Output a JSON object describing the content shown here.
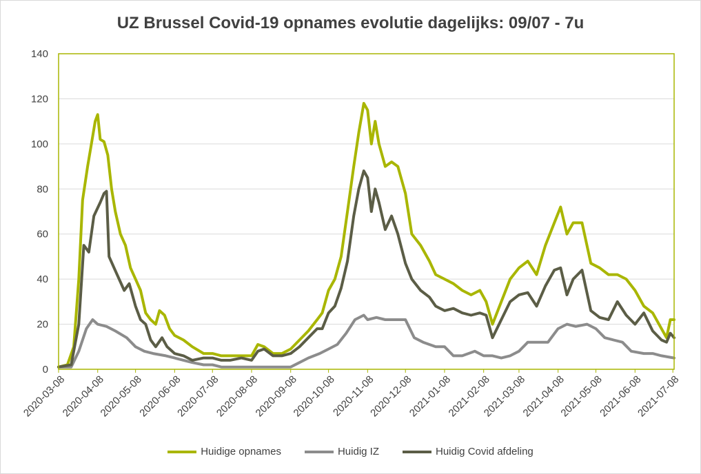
{
  "chart_data": {
    "type": "line",
    "title": "UZ Brussel Covid-19 opnames evolutie dagelijks: 09/07 - 7u",
    "xlabel": "",
    "ylabel": "",
    "ylim": [
      0,
      140
    ],
    "yticks": [
      0,
      20,
      40,
      60,
      80,
      100,
      120,
      140
    ],
    "xticks": [
      "2020-03-08",
      "2020-04-08",
      "2020-05-08",
      "2020-06-08",
      "2020-07-08",
      "2020-08-08",
      "2020-09-08",
      "2020-10-08",
      "2020-11-08",
      "2020-12-08",
      "2021-01-08",
      "2021-02-08",
      "2021-03-08",
      "2021-04-08",
      "2021-05-08",
      "2021-06-08",
      "2021-07-08"
    ],
    "x_range": [
      "2020-03-08",
      "2021-07-09"
    ],
    "grid": "horizontal",
    "legend": "bottom",
    "series": [
      {
        "name": "Huidige opnames",
        "color": "#a9b600",
        "points": [
          [
            "2020-03-08",
            1
          ],
          [
            "2020-03-15",
            2
          ],
          [
            "2020-03-20",
            10
          ],
          [
            "2020-03-24",
            40
          ],
          [
            "2020-03-27",
            75
          ],
          [
            "2020-03-31",
            90
          ],
          [
            "2020-04-03",
            100
          ],
          [
            "2020-04-06",
            110
          ],
          [
            "2020-04-08",
            113
          ],
          [
            "2020-04-10",
            102
          ],
          [
            "2020-04-13",
            101
          ],
          [
            "2020-04-16",
            95
          ],
          [
            "2020-04-19",
            80
          ],
          [
            "2020-04-22",
            70
          ],
          [
            "2020-04-26",
            60
          ],
          [
            "2020-04-30",
            55
          ],
          [
            "2020-05-04",
            45
          ],
          [
            "2020-05-08",
            40
          ],
          [
            "2020-05-12",
            35
          ],
          [
            "2020-05-16",
            25
          ],
          [
            "2020-05-20",
            22
          ],
          [
            "2020-05-24",
            20
          ],
          [
            "2020-05-27",
            26
          ],
          [
            "2020-05-31",
            24
          ],
          [
            "2020-06-04",
            18
          ],
          [
            "2020-06-08",
            15
          ],
          [
            "2020-06-15",
            13
          ],
          [
            "2020-06-22",
            10
          ],
          [
            "2020-07-01",
            7
          ],
          [
            "2020-07-08",
            7
          ],
          [
            "2020-07-15",
            6
          ],
          [
            "2020-07-22",
            6
          ],
          [
            "2020-07-31",
            6
          ],
          [
            "2020-08-08",
            6
          ],
          [
            "2020-08-13",
            11
          ],
          [
            "2020-08-18",
            10
          ],
          [
            "2020-08-25",
            7
          ],
          [
            "2020-09-01",
            7
          ],
          [
            "2020-09-08",
            9
          ],
          [
            "2020-09-15",
            13
          ],
          [
            "2020-09-22",
            17
          ],
          [
            "2020-09-29",
            22
          ],
          [
            "2020-10-03",
            25
          ],
          [
            "2020-10-08",
            35
          ],
          [
            "2020-10-13",
            40
          ],
          [
            "2020-10-18",
            50
          ],
          [
            "2020-10-23",
            70
          ],
          [
            "2020-10-28",
            90
          ],
          [
            "2020-11-01",
            105
          ],
          [
            "2020-11-05",
            118
          ],
          [
            "2020-11-08",
            115
          ],
          [
            "2020-11-11",
            100
          ],
          [
            "2020-11-14",
            110
          ],
          [
            "2020-11-17",
            100
          ],
          [
            "2020-11-22",
            90
          ],
          [
            "2020-11-27",
            92
          ],
          [
            "2020-12-02",
            90
          ],
          [
            "2020-12-08",
            78
          ],
          [
            "2020-12-13",
            60
          ],
          [
            "2020-12-20",
            55
          ],
          [
            "2020-12-27",
            48
          ],
          [
            "2021-01-01",
            42
          ],
          [
            "2021-01-08",
            40
          ],
          [
            "2021-01-15",
            38
          ],
          [
            "2021-01-22",
            35
          ],
          [
            "2021-01-29",
            33
          ],
          [
            "2021-02-05",
            35
          ],
          [
            "2021-02-10",
            30
          ],
          [
            "2021-02-15",
            20
          ],
          [
            "2021-02-22",
            30
          ],
          [
            "2021-03-01",
            40
          ],
          [
            "2021-03-08",
            45
          ],
          [
            "2021-03-15",
            48
          ],
          [
            "2021-03-22",
            42
          ],
          [
            "2021-03-29",
            55
          ],
          [
            "2021-04-05",
            65
          ],
          [
            "2021-04-10",
            72
          ],
          [
            "2021-04-15",
            60
          ],
          [
            "2021-04-20",
            65
          ],
          [
            "2021-04-27",
            65
          ],
          [
            "2021-05-04",
            47
          ],
          [
            "2021-05-11",
            45
          ],
          [
            "2021-05-18",
            42
          ],
          [
            "2021-05-25",
            42
          ],
          [
            "2021-06-01",
            40
          ],
          [
            "2021-06-08",
            35
          ],
          [
            "2021-06-15",
            28
          ],
          [
            "2021-06-22",
            25
          ],
          [
            "2021-06-29",
            18
          ],
          [
            "2021-07-03",
            14
          ],
          [
            "2021-07-06",
            22
          ],
          [
            "2021-07-09",
            22
          ]
        ]
      },
      {
        "name": "Huidig IZ",
        "color": "#8c8c8c",
        "points": [
          [
            "2020-03-08",
            1
          ],
          [
            "2020-03-18",
            1
          ],
          [
            "2020-03-24",
            8
          ],
          [
            "2020-03-30",
            18
          ],
          [
            "2020-04-04",
            22
          ],
          [
            "2020-04-08",
            20
          ],
          [
            "2020-04-15",
            19
          ],
          [
            "2020-04-22",
            17
          ],
          [
            "2020-05-01",
            14
          ],
          [
            "2020-05-08",
            10
          ],
          [
            "2020-05-15",
            8
          ],
          [
            "2020-05-22",
            7
          ],
          [
            "2020-06-01",
            6
          ],
          [
            "2020-06-08",
            5
          ],
          [
            "2020-06-15",
            4
          ],
          [
            "2020-06-22",
            3
          ],
          [
            "2020-07-01",
            2
          ],
          [
            "2020-07-08",
            2
          ],
          [
            "2020-07-15",
            1
          ],
          [
            "2020-08-08",
            1
          ],
          [
            "2020-08-25",
            1
          ],
          [
            "2020-09-08",
            1
          ],
          [
            "2020-09-15",
            3
          ],
          [
            "2020-09-22",
            5
          ],
          [
            "2020-10-01",
            7
          ],
          [
            "2020-10-08",
            9
          ],
          [
            "2020-10-15",
            11
          ],
          [
            "2020-10-22",
            16
          ],
          [
            "2020-10-29",
            22
          ],
          [
            "2020-11-05",
            24
          ],
          [
            "2020-11-08",
            22
          ],
          [
            "2020-11-15",
            23
          ],
          [
            "2020-11-22",
            22
          ],
          [
            "2020-12-01",
            22
          ],
          [
            "2020-12-08",
            22
          ],
          [
            "2020-12-15",
            14
          ],
          [
            "2020-12-22",
            12
          ],
          [
            "2021-01-01",
            10
          ],
          [
            "2021-01-08",
            10
          ],
          [
            "2021-01-15",
            6
          ],
          [
            "2021-01-22",
            6
          ],
          [
            "2021-02-01",
            8
          ],
          [
            "2021-02-08",
            6
          ],
          [
            "2021-02-15",
            6
          ],
          [
            "2021-02-22",
            5
          ],
          [
            "2021-03-01",
            6
          ],
          [
            "2021-03-08",
            8
          ],
          [
            "2021-03-15",
            12
          ],
          [
            "2021-03-22",
            12
          ],
          [
            "2021-03-31",
            12
          ],
          [
            "2021-04-08",
            18
          ],
          [
            "2021-04-15",
            20
          ],
          [
            "2021-04-22",
            19
          ],
          [
            "2021-05-01",
            20
          ],
          [
            "2021-05-08",
            18
          ],
          [
            "2021-05-15",
            14
          ],
          [
            "2021-05-22",
            13
          ],
          [
            "2021-05-29",
            12
          ],
          [
            "2021-06-05",
            8
          ],
          [
            "2021-06-15",
            7
          ],
          [
            "2021-06-22",
            7
          ],
          [
            "2021-06-29",
            6
          ],
          [
            "2021-07-09",
            5
          ]
        ]
      },
      {
        "name": "Huidig Covid afdeling",
        "color": "#5b5d46",
        "points": [
          [
            "2020-03-08",
            1
          ],
          [
            "2020-03-18",
            2
          ],
          [
            "2020-03-24",
            20
          ],
          [
            "2020-03-28",
            55
          ],
          [
            "2020-04-01",
            52
          ],
          [
            "2020-04-05",
            68
          ],
          [
            "2020-04-10",
            74
          ],
          [
            "2020-04-13",
            78
          ],
          [
            "2020-04-15",
            79
          ],
          [
            "2020-04-17",
            50
          ],
          [
            "2020-04-21",
            45
          ],
          [
            "2020-04-25",
            40
          ],
          [
            "2020-04-29",
            35
          ],
          [
            "2020-05-03",
            38
          ],
          [
            "2020-05-08",
            28
          ],
          [
            "2020-05-12",
            22
          ],
          [
            "2020-05-16",
            20
          ],
          [
            "2020-05-20",
            13
          ],
          [
            "2020-05-24",
            10
          ],
          [
            "2020-05-29",
            14
          ],
          [
            "2020-06-02",
            10
          ],
          [
            "2020-06-08",
            7
          ],
          [
            "2020-06-15",
            6
          ],
          [
            "2020-06-22",
            4
          ],
          [
            "2020-07-01",
            5
          ],
          [
            "2020-07-08",
            5
          ],
          [
            "2020-07-15",
            4
          ],
          [
            "2020-07-22",
            4
          ],
          [
            "2020-07-31",
            5
          ],
          [
            "2020-08-08",
            4
          ],
          [
            "2020-08-13",
            8
          ],
          [
            "2020-08-18",
            9
          ],
          [
            "2020-08-25",
            6
          ],
          [
            "2020-09-01",
            6
          ],
          [
            "2020-09-08",
            7
          ],
          [
            "2020-09-15",
            10
          ],
          [
            "2020-09-22",
            14
          ],
          [
            "2020-09-29",
            18
          ],
          [
            "2020-10-03",
            18
          ],
          [
            "2020-10-08",
            25
          ],
          [
            "2020-10-13",
            28
          ],
          [
            "2020-10-18",
            36
          ],
          [
            "2020-10-23",
            48
          ],
          [
            "2020-10-28",
            68
          ],
          [
            "2020-11-01",
            80
          ],
          [
            "2020-11-05",
            88
          ],
          [
            "2020-11-08",
            85
          ],
          [
            "2020-11-11",
            70
          ],
          [
            "2020-11-14",
            80
          ],
          [
            "2020-11-17",
            74
          ],
          [
            "2020-11-22",
            62
          ],
          [
            "2020-11-27",
            68
          ],
          [
            "2020-12-02",
            60
          ],
          [
            "2020-12-08",
            47
          ],
          [
            "2020-12-13",
            40
          ],
          [
            "2020-12-20",
            35
          ],
          [
            "2020-12-27",
            32
          ],
          [
            "2021-01-01",
            28
          ],
          [
            "2021-01-08",
            26
          ],
          [
            "2021-01-15",
            27
          ],
          [
            "2021-01-22",
            25
          ],
          [
            "2021-01-29",
            24
          ],
          [
            "2021-02-05",
            25
          ],
          [
            "2021-02-10",
            24
          ],
          [
            "2021-02-15",
            14
          ],
          [
            "2021-02-22",
            22
          ],
          [
            "2021-03-01",
            30
          ],
          [
            "2021-03-08",
            33
          ],
          [
            "2021-03-15",
            34
          ],
          [
            "2021-03-22",
            28
          ],
          [
            "2021-03-29",
            37
          ],
          [
            "2021-04-05",
            44
          ],
          [
            "2021-04-10",
            45
          ],
          [
            "2021-04-15",
            33
          ],
          [
            "2021-04-20",
            40
          ],
          [
            "2021-04-27",
            44
          ],
          [
            "2021-05-04",
            26
          ],
          [
            "2021-05-11",
            23
          ],
          [
            "2021-05-18",
            22
          ],
          [
            "2021-05-25",
            30
          ],
          [
            "2021-06-01",
            24
          ],
          [
            "2021-06-08",
            20
          ],
          [
            "2021-06-15",
            25
          ],
          [
            "2021-06-22",
            17
          ],
          [
            "2021-06-29",
            13
          ],
          [
            "2021-07-03",
            12
          ],
          [
            "2021-07-06",
            16
          ],
          [
            "2021-07-09",
            14
          ]
        ]
      }
    ]
  }
}
